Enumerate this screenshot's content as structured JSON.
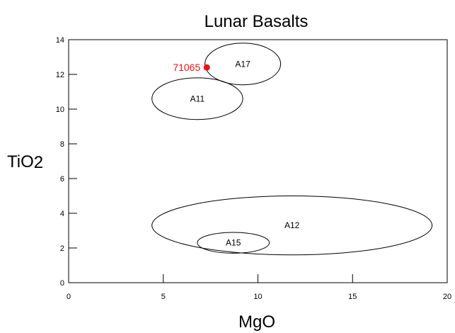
{
  "chart_data": {
    "type": "scatter",
    "title": "Lunar Basalts",
    "xlabel": "MgO",
    "ylabel": {
      "main": "TiO",
      "subscript": "2"
    },
    "xlim": [
      0,
      20
    ],
    "ylim": [
      0,
      14
    ],
    "x_ticks": [
      0,
      5,
      10,
      15,
      20
    ],
    "y_ticks": [
      0,
      2,
      4,
      6,
      8,
      10,
      12,
      14
    ],
    "grid": false,
    "regions": [
      {
        "name": "A17",
        "center": [
          9.2,
          12.6
        ],
        "radii": [
          2.0,
          1.2
        ]
      },
      {
        "name": "A11",
        "center": [
          6.8,
          10.6
        ],
        "radii": [
          2.4,
          1.2
        ]
      },
      {
        "name": "A12",
        "center": [
          11.8,
          3.3
        ],
        "radii": [
          7.4,
          1.7
        ]
      },
      {
        "name": "A15",
        "center": [
          8.7,
          2.3
        ],
        "radii": [
          1.9,
          0.6
        ]
      }
    ],
    "points": [
      {
        "name": "71065",
        "x": 7.3,
        "y": 12.4,
        "color": "#ee1111"
      }
    ]
  }
}
